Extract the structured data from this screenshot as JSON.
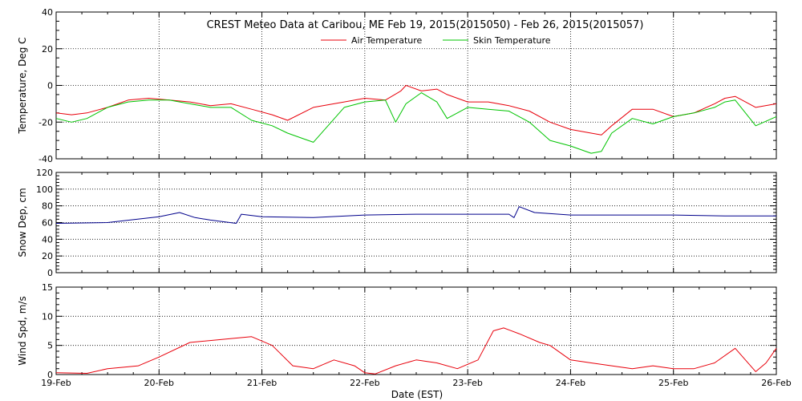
{
  "title": "CREST Meteo Data at Caribou, ME   Feb 19, 2015(2015050) - Feb 26, 2015(2015057)",
  "xlabel": "Date (EST)",
  "x_ticks": [
    "19-Feb",
    "20-Feb",
    "21-Feb",
    "22-Feb",
    "23-Feb",
    "24-Feb",
    "25-Feb",
    "26-Feb"
  ],
  "colors": {
    "red": "#e8000b",
    "green": "#00c400",
    "blue": "#00008b"
  },
  "chart_data": [
    {
      "type": "line",
      "panel": "temperature",
      "ylabel": "Temperature, Deg C",
      "ylim": [
        -40,
        40
      ],
      "y_ticks": [
        "-40",
        "-20",
        "0",
        "20",
        "40"
      ],
      "xlim": [
        0,
        7
      ],
      "grid": true,
      "legend_position": "top-center",
      "series": [
        {
          "name": "Air Temperature",
          "color": "#e8000b",
          "x": [
            0,
            0.15,
            0.3,
            0.5,
            0.7,
            0.9,
            1.1,
            1.3,
            1.5,
            1.7,
            1.9,
            2.1,
            2.25,
            2.5,
            2.8,
            3.0,
            3.2,
            3.35,
            3.4,
            3.55,
            3.7,
            3.8,
            4.0,
            4.2,
            4.4,
            4.6,
            4.8,
            5.0,
            5.2,
            5.3,
            5.4,
            5.6,
            5.8,
            6.0,
            6.2,
            6.4,
            6.5,
            6.6,
            6.8,
            7.0
          ],
          "y": [
            -15,
            -16,
            -15,
            -12,
            -8,
            -7,
            -8,
            -9,
            -11,
            -10,
            -13,
            -16,
            -19,
            -12,
            -9,
            -7,
            -8,
            -3,
            0,
            -3,
            -2,
            -5,
            -9,
            -9,
            -11,
            -14,
            -20,
            -24,
            -26,
            -27,
            -22,
            -13,
            -13,
            -17,
            -15,
            -10,
            -7,
            -6,
            -12,
            -10
          ]
        },
        {
          "name": "Skin Temperature",
          "color": "#00c400",
          "x": [
            0,
            0.15,
            0.3,
            0.5,
            0.7,
            0.9,
            1.1,
            1.3,
            1.5,
            1.7,
            1.9,
            2.1,
            2.25,
            2.5,
            2.8,
            3.0,
            3.2,
            3.3,
            3.4,
            3.55,
            3.7,
            3.8,
            4.0,
            4.2,
            4.4,
            4.6,
            4.8,
            5.0,
            5.2,
            5.3,
            5.4,
            5.6,
            5.8,
            6.0,
            6.2,
            6.4,
            6.5,
            6.6,
            6.8,
            7.0
          ],
          "y": [
            -18,
            -20,
            -18,
            -12,
            -9,
            -8,
            -8,
            -10,
            -12,
            -12,
            -19,
            -22,
            -26,
            -31,
            -12,
            -9,
            -8,
            -20,
            -10,
            -4,
            -9,
            -18,
            -12,
            -13,
            -14,
            -20,
            -30,
            -33,
            -37,
            -36,
            -26,
            -18,
            -21,
            -17,
            -15,
            -12,
            -9,
            -8,
            -22,
            -17
          ]
        }
      ]
    },
    {
      "type": "line",
      "panel": "snow_depth",
      "ylabel": "Snow Dep, cm",
      "ylim": [
        0,
        120
      ],
      "y_ticks": [
        "0",
        "20",
        "40",
        "60",
        "80",
        "100",
        "120"
      ],
      "xlim": [
        0,
        7
      ],
      "grid": true,
      "series": [
        {
          "name": "",
          "color": "#00008b",
          "x": [
            0,
            0.5,
            1.0,
            1.2,
            1.35,
            1.5,
            1.75,
            1.8,
            2.0,
            2.5,
            3.0,
            3.5,
            4.0,
            4.4,
            4.45,
            4.5,
            4.65,
            5.0,
            5.5,
            6.0,
            6.5,
            7.0
          ],
          "y": [
            59,
            60,
            67,
            72,
            66,
            63,
            59,
            70,
            67,
            66,
            69,
            70,
            70,
            70,
            66,
            79,
            72,
            69,
            69,
            69,
            68,
            68
          ]
        }
      ]
    },
    {
      "type": "line",
      "panel": "wind_speed",
      "ylabel": "Wind Spd, m/s",
      "ylim": [
        0,
        15
      ],
      "y_ticks": [
        "0",
        "5",
        "10",
        "15"
      ],
      "xlim": [
        0,
        7
      ],
      "grid": true,
      "series": [
        {
          "name": "",
          "color": "#e8000b",
          "x": [
            0,
            0.3,
            0.5,
            0.8,
            1.0,
            1.3,
            1.6,
            1.9,
            2.1,
            2.3,
            2.5,
            2.7,
            2.9,
            3.0,
            3.1,
            3.3,
            3.5,
            3.7,
            3.9,
            4.1,
            4.25,
            4.35,
            4.5,
            4.7,
            4.8,
            5.0,
            5.2,
            5.4,
            5.6,
            5.8,
            6.0,
            6.2,
            6.4,
            6.6,
            6.8,
            6.9,
            7.0
          ],
          "y": [
            0.3,
            0.2,
            1.0,
            1.5,
            3.0,
            5.5,
            6.0,
            6.5,
            5.0,
            1.5,
            1.0,
            2.5,
            1.5,
            0.3,
            0.1,
            1.5,
            2.5,
            2.0,
            1.0,
            2.5,
            7.5,
            8.0,
            7.0,
            5.5,
            5.0,
            2.5,
            2.0,
            1.5,
            1.0,
            1.5,
            1.0,
            1.0,
            2.0,
            4.5,
            0.5,
            2.0,
            4.5
          ]
        }
      ]
    }
  ]
}
